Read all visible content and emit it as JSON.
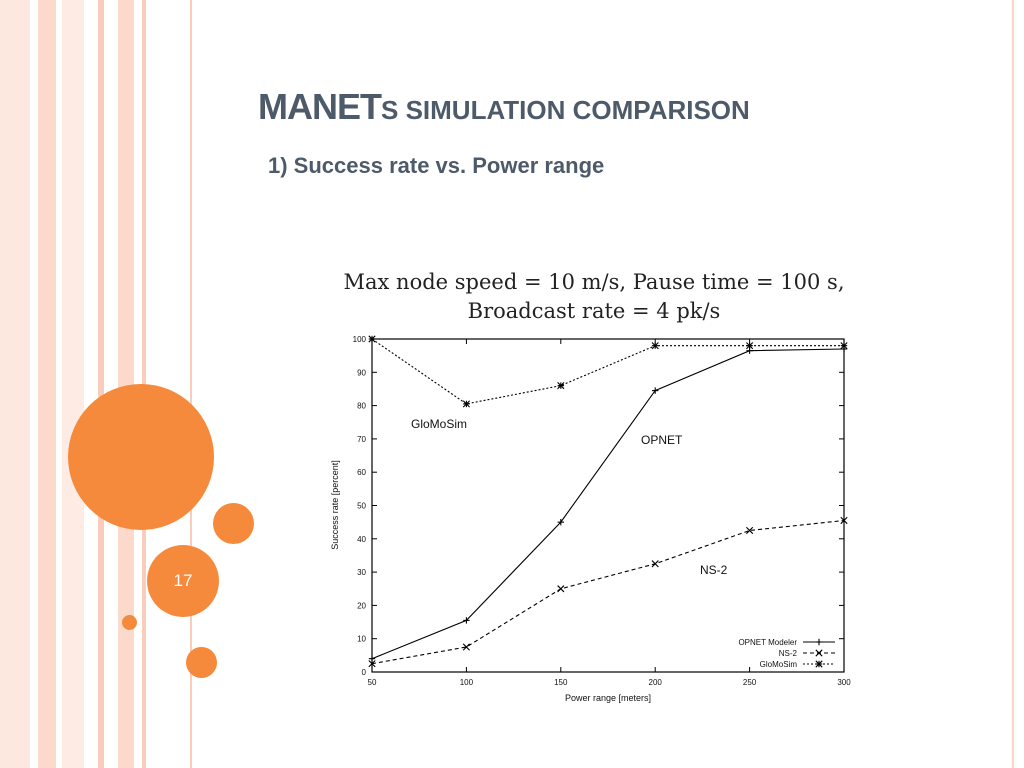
{
  "slide": {
    "title_main": "MANET",
    "title_rest": "s simulation comparison",
    "subtitle": "1) Success rate vs. Power range",
    "page_number": "17"
  },
  "theme": {
    "accent": "#f68a3c",
    "stripe_colors": [
      "#fde8df",
      "#fbd9cb",
      "#fdebe4",
      "#f9cdbb"
    ],
    "text_color": "#4d5a6a"
  },
  "chart_data": {
    "type": "line",
    "title": [
      "Max node speed = 10 m/s, Pause time = 100 s,",
      "Broadcast rate = 4 pk/s"
    ],
    "xlabel": "Power range [meters]",
    "ylabel": "Success rate [percent]",
    "xlim": [
      50,
      300
    ],
    "ylim": [
      0,
      100
    ],
    "x": [
      50,
      100,
      150,
      200,
      250,
      300
    ],
    "x_ticks": [
      50,
      100,
      150,
      200,
      250,
      300
    ],
    "y_ticks": [
      0,
      10,
      20,
      30,
      40,
      50,
      60,
      70,
      80,
      90,
      100
    ],
    "legend_position": "bottom-right",
    "series": [
      {
        "name": "OPNET Modeler",
        "label": "OPNET",
        "values": [
          4,
          15.5,
          45,
          84.5,
          96.5,
          97
        ],
        "style": "solid",
        "marker": "plus"
      },
      {
        "name": "NS-2",
        "label": "NS-2",
        "values": [
          2.5,
          7.5,
          25,
          32.5,
          42.5,
          45.5
        ],
        "style": "dashed",
        "marker": "x"
      },
      {
        "name": "GloMoSim",
        "label": "GloMoSim",
        "values": [
          100,
          80.5,
          86,
          98,
          98,
          98
        ],
        "style": "dotted",
        "marker": "star"
      }
    ]
  }
}
